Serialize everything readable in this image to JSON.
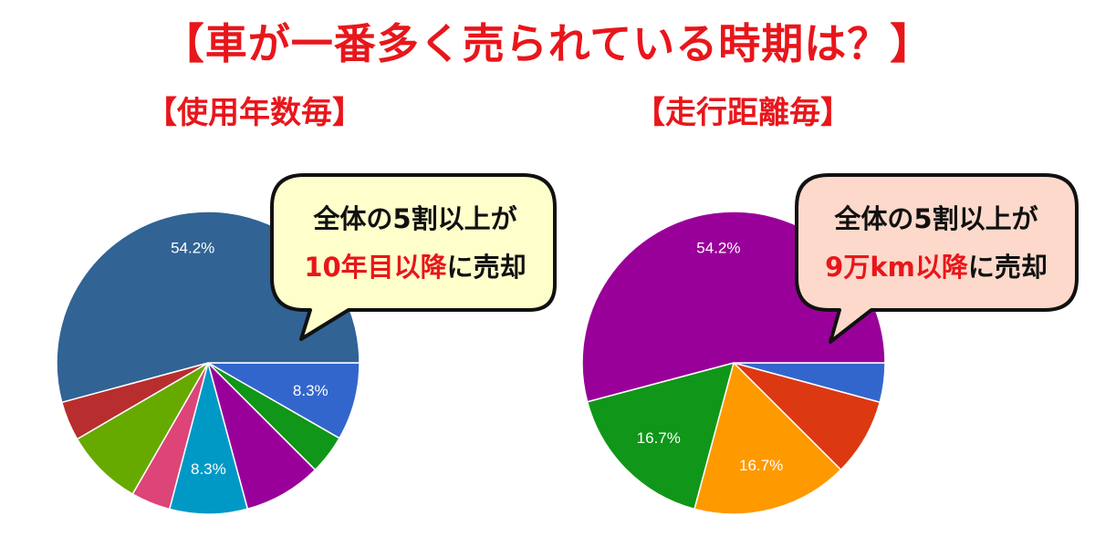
{
  "title": "【車が一番多く売られている時期は？】",
  "chart_data": [
    {
      "type": "pie",
      "title": "【使用年数毎】",
      "colors": [
        "#3366cc",
        "#109618",
        "#990099",
        "#0099c6",
        "#dd4477",
        "#66aa00",
        "#b82e2e",
        "#316395"
      ],
      "values": [
        8.3,
        4.2,
        8.3,
        8.3,
        4.2,
        8.3,
        4.2,
        54.2
      ],
      "labels": [
        "8.3%",
        "",
        "",
        "8.3%",
        "",
        "",
        "",
        "54.2%"
      ]
    },
    {
      "type": "pie",
      "title": "【走行距離毎】",
      "colors": [
        "#3366cc",
        "#dc3912",
        "#ff9900",
        "#109618",
        "#990099"
      ],
      "values": [
        4.2,
        8.3,
        16.7,
        16.7,
        54.2
      ],
      "labels": [
        "",
        "",
        "16.7%",
        "16.7%",
        "54.2%"
      ]
    }
  ],
  "callouts": [
    {
      "line1": "全体の5割以上が",
      "line2_highlight": "10年目以降",
      "line2_rest": "に売却",
      "fill": "#ffffcc"
    },
    {
      "line1": "全体の5割以上が",
      "line2_highlight": "9万km以降",
      "line2_rest": "に売却",
      "fill": "#fcd9cb"
    }
  ],
  "highlight_color": "#e8161b"
}
